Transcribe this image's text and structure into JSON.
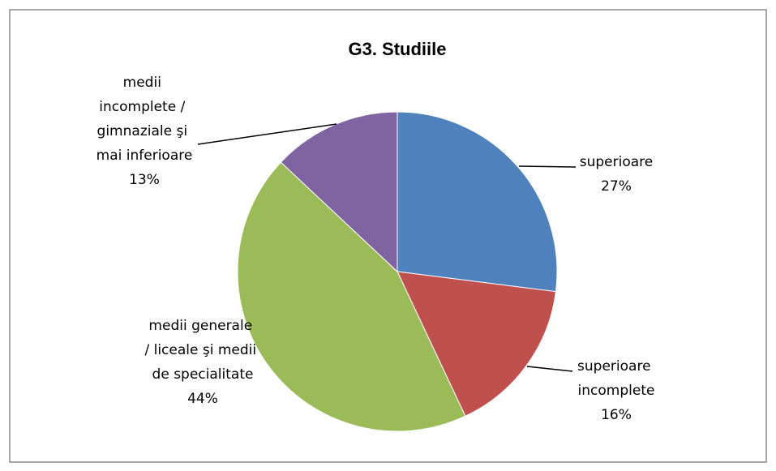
{
  "chart_data": {
    "type": "pie",
    "title": "G3. Studiile",
    "categories": [
      "superioare",
      "superioare incomplete",
      "medii generale / liceale şi medii de specialitate",
      "medii incomplete / gimnaziale şi mai inferioare"
    ],
    "values": [
      27,
      16,
      44,
      13
    ],
    "value_labels": [
      "27%",
      "16%",
      "44%",
      "13%"
    ],
    "colors": [
      "#4f81bd",
      "#c0504d",
      "#9bbb59",
      "#8064a2"
    ]
  }
}
